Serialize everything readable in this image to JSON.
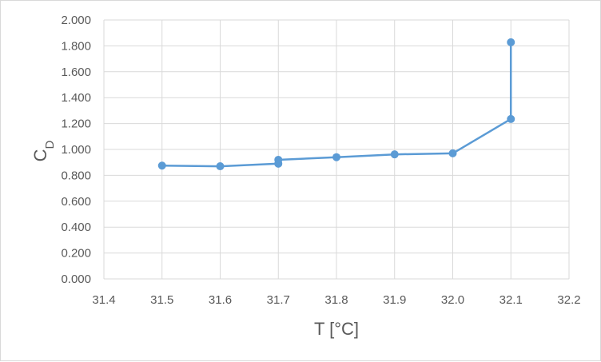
{
  "chart_data": {
    "type": "scatter",
    "xlabel": "T [°C]",
    "ylabel_main": "C",
    "ylabel_sub": "D",
    "xlim": [
      31.4,
      32.2
    ],
    "ylim": [
      0.0,
      2.0
    ],
    "x_ticks": [
      "31.4",
      "31.5",
      "31.6",
      "31.7",
      "31.8",
      "31.9",
      "32.0",
      "32.1",
      "32.2"
    ],
    "y_ticks": [
      "0.000",
      "0.200",
      "0.400",
      "0.600",
      "0.800",
      "1.000",
      "1.200",
      "1.400",
      "1.600",
      "1.800",
      "2.000"
    ],
    "grid": true,
    "legend": "none",
    "series": [
      {
        "color": "#5b9bd5",
        "x": [
          31.5,
          31.6,
          31.7,
          31.7,
          31.8,
          31.9,
          32.0,
          32.1,
          32.1
        ],
        "y": [
          0.875,
          0.87,
          0.89,
          0.92,
          0.94,
          0.962,
          0.97,
          1.235,
          1.828
        ]
      }
    ]
  }
}
